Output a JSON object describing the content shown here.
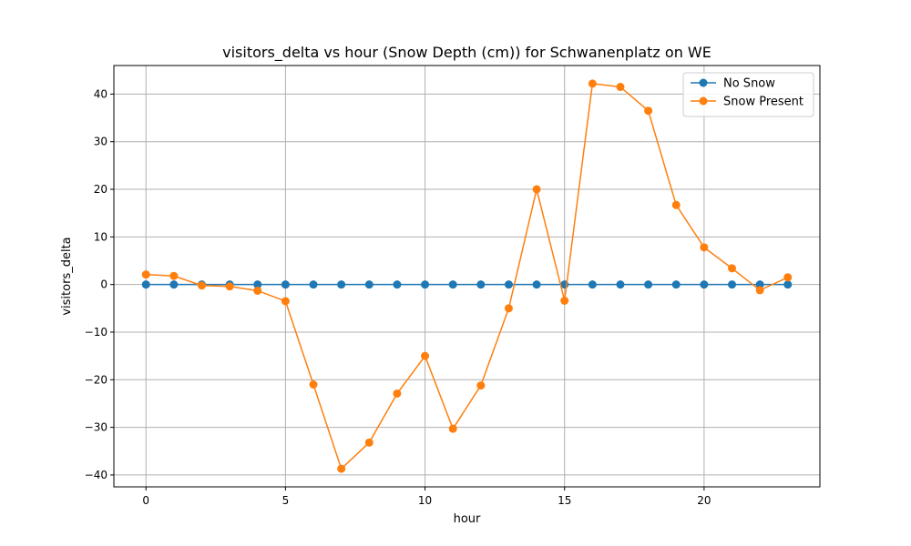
{
  "chart_data": {
    "type": "line",
    "title": "visitors_delta vs hour (Snow Depth (cm)) for Schwanenplatz on WE",
    "xlabel": "hour",
    "ylabel": "visitors_delta",
    "xlim": [
      -1.15,
      24.15
    ],
    "ylim": [
      -42.5,
      46.0
    ],
    "xticks": [
      0,
      5,
      10,
      15,
      20
    ],
    "yticks": [
      -40,
      -30,
      -20,
      -10,
      0,
      10,
      20,
      30,
      40
    ],
    "xtick_labels": [
      "0",
      "5",
      "10",
      "15",
      "20"
    ],
    "ytick_labels": [
      "−40",
      "−30",
      "−20",
      "−10",
      "0",
      "10",
      "20",
      "30",
      "40"
    ],
    "grid": true,
    "legend_position": "top-right",
    "x": [
      0,
      1,
      2,
      3,
      4,
      5,
      6,
      7,
      8,
      9,
      10,
      11,
      12,
      13,
      14,
      15,
      16,
      17,
      18,
      19,
      20,
      21,
      22,
      23
    ],
    "series": [
      {
        "name": "No Snow",
        "color": "#1f77b4",
        "values": [
          0,
          0,
          0,
          0,
          0,
          0,
          0,
          0,
          0,
          0,
          0,
          0,
          0,
          0,
          0,
          0,
          0,
          0,
          0,
          0,
          0,
          0,
          0,
          0
        ]
      },
      {
        "name": "Snow Present",
        "color": "#ff7f0e",
        "values": [
          2.1,
          1.8,
          -0.2,
          -0.4,
          -1.3,
          -3.5,
          -21.0,
          -38.7,
          -33.2,
          -22.9,
          -15.0,
          -30.3,
          -21.2,
          -5.0,
          20.0,
          -3.4,
          42.2,
          41.5,
          36.5,
          16.7,
          7.8,
          3.4,
          -1.2,
          1.5
        ]
      }
    ]
  }
}
